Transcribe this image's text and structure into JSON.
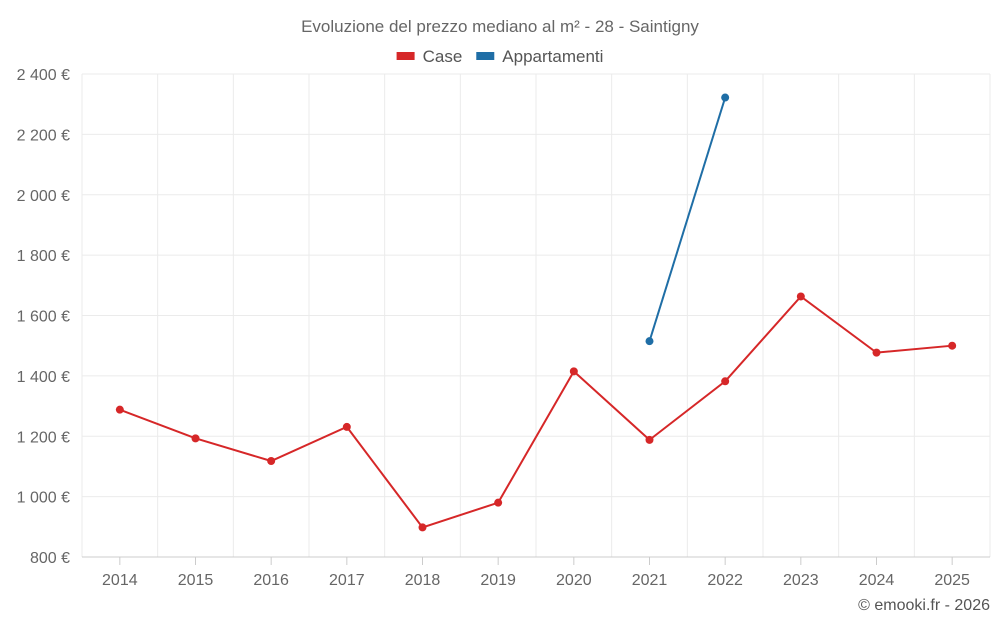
{
  "chart_data": {
    "type": "line",
    "title": "Evoluzione del prezzo mediano al m² - 28 - Saintigny",
    "categories": [
      "2014",
      "2015",
      "2016",
      "2017",
      "2018",
      "2019",
      "2020",
      "2021",
      "2022",
      "2023",
      "2024",
      "2025"
    ],
    "series": [
      {
        "name": "Case",
        "color": "#d62728",
        "values": [
          1288,
          1193,
          1118,
          1231,
          898,
          980,
          1415,
          1188,
          1382,
          1663,
          1477,
          1500
        ]
      },
      {
        "name": "Appartamenti",
        "color": "#1f6ea6",
        "values": [
          null,
          null,
          null,
          null,
          null,
          null,
          null,
          1515,
          2322,
          null,
          null,
          null
        ]
      }
    ],
    "ylim": [
      800,
      2400
    ],
    "y_ticks": [
      800,
      1000,
      1200,
      1400,
      1600,
      1800,
      2000,
      2200,
      2400
    ],
    "y_tick_labels": [
      "800 €",
      "1 000 €",
      "1 200 €",
      "1 400 €",
      "1 600 €",
      "1 800 €",
      "2 000 €",
      "2 200 €",
      "2 400 €"
    ],
    "xlabel": "",
    "ylabel": "",
    "grid": true,
    "legend_position": "top-center"
  },
  "credit": "© emooki.fr - 2026"
}
